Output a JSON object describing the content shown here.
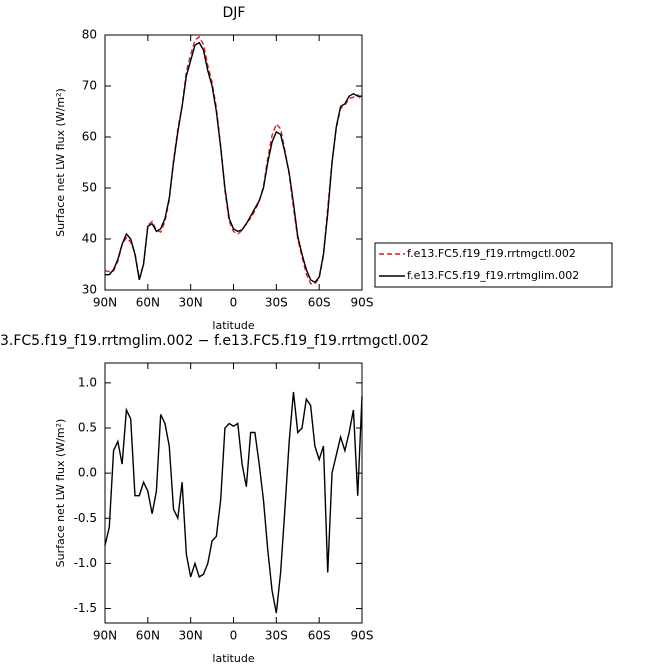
{
  "chart_data": [
    {
      "type": "line",
      "title": "DJF",
      "xlabel": "latitude",
      "ylabel": "Surface net LW flux (W/m²)",
      "x": [
        90,
        87,
        84,
        81,
        78,
        75,
        72,
        69,
        66,
        63,
        60,
        57,
        54,
        51,
        48,
        45,
        42,
        39,
        36,
        33,
        30,
        27,
        24,
        21,
        18,
        15,
        12,
        9,
        6,
        3,
        0,
        -3,
        -6,
        -9,
        -12,
        -15,
        -18,
        -21,
        -24,
        -27,
        -30,
        -33,
        -36,
        -39,
        -42,
        -45,
        -48,
        -51,
        -54,
        -57,
        -60,
        -63,
        -66,
        -69,
        -72,
        -75,
        -78,
        -81,
        -84,
        -87,
        -90
      ],
      "series": [
        {
          "name": "f.e13.FC5.f19_f19.rrtmgctl.002",
          "color": "#e41a1c",
          "dash": "dashed",
          "values": [
            33.8,
            33.6,
            33.75,
            35.65,
            38.9,
            40.3,
            39.4,
            37.25,
            32.25,
            35.1,
            42.7,
            43.45,
            41.7,
            41.35,
            43.45,
            47.7,
            55.4,
            61.5,
            66.1,
            72.9,
            76.15,
            79,
            79.65,
            78.12,
            74,
            70.75,
            65.7,
            58.3,
            49.5,
            43.45,
            41.48,
            40.95,
            41.7,
            43.15,
            44.05,
            45.55,
            47.4,
            50.3,
            55.85,
            60.3,
            62.55,
            61.6,
            57.4,
            52.65,
            46.1,
            40.05,
            36.5,
            33.18,
            31.25,
            31.2,
            32.35,
            36.7,
            46.1,
            55,
            61.8,
            65.6,
            66.25,
            67.55,
            67.8,
            68.25,
            67.15
          ]
        },
        {
          "name": "f.e13.FC5.f19_f19.rrtmglim.002",
          "color": "#000000",
          "dash": "solid",
          "values": [
            33,
            33,
            34,
            36,
            39,
            41,
            40,
            37,
            32,
            35,
            42.5,
            43,
            41.5,
            42,
            44,
            48,
            55,
            61,
            66,
            72,
            75,
            78,
            78.5,
            77,
            73,
            70,
            65,
            58,
            50,
            44,
            42,
            41.5,
            41.8,
            43,
            44.5,
            46,
            47.5,
            50,
            55,
            59,
            61,
            60.5,
            57,
            53,
            47,
            40.5,
            37,
            34,
            32,
            31.5,
            32.5,
            37,
            45,
            55,
            62,
            66,
            66.5,
            68,
            68.5,
            68,
            68
          ]
        }
      ],
      "xlim": [
        90,
        -90
      ],
      "xticks": [
        {
          "value": 90,
          "label": "90N"
        },
        {
          "value": 60,
          "label": "60N"
        },
        {
          "value": 30,
          "label": "30N"
        },
        0,
        {
          "value": -30,
          "label": "30S"
        },
        {
          "value": -60,
          "label": "60S"
        },
        {
          "value": -90,
          "label": "90S"
        }
      ],
      "ylim": [
        30,
        80
      ],
      "yticks": [
        30,
        40,
        50,
        60,
        70,
        80
      ],
      "legend": "outside right"
    },
    {
      "type": "line",
      "title": "3.FC5.f19_f19.rrtmglim.002 − f.e13.FC5.f19_f19.rrtmgctl.002",
      "xlabel": "latitude",
      "ylabel": "Surface net LW flux (W/m²)",
      "x": [
        90,
        87,
        84,
        81,
        78,
        75,
        72,
        69,
        66,
        63,
        60,
        57,
        54,
        51,
        48,
        45,
        42,
        39,
        36,
        33,
        30,
        27,
        24,
        21,
        18,
        15,
        12,
        9,
        6,
        3,
        0,
        -3,
        -6,
        -9,
        -12,
        -15,
        -18,
        -21,
        -24,
        -27,
        -30,
        -33,
        -36,
        -39,
        -42,
        -45,
        -48,
        -51,
        -54,
        -57,
        -60,
        -63,
        -66,
        -69,
        -72,
        -75,
        -78,
        -81,
        -84,
        -87,
        -90
      ],
      "color": "#000000",
      "values": [
        -0.8,
        -0.6,
        0.25,
        0.35,
        0.1,
        0.7,
        0.6,
        -0.25,
        -0.25,
        -0.1,
        -0.2,
        -0.45,
        -0.2,
        0.65,
        0.55,
        0.3,
        -0.4,
        -0.5,
        -0.1,
        -0.9,
        -1.15,
        -1.0,
        -1.15,
        -1.12,
        -1.0,
        -0.75,
        -0.7,
        -0.3,
        0.5,
        0.55,
        0.52,
        0.55,
        0.1,
        -0.15,
        0.45,
        0.45,
        0.1,
        -0.3,
        -0.85,
        -1.3,
        -1.55,
        -1.1,
        -0.4,
        0.35,
        0.9,
        0.45,
        0.5,
        0.82,
        0.75,
        0.3,
        0.15,
        0.3,
        -1.1,
        0.0,
        0.2,
        0.4,
        0.25,
        0.45,
        0.7,
        -0.25,
        0.85
      ],
      "xlim": [
        90,
        -90
      ],
      "xticks": [
        {
          "value": 90,
          "label": "90N"
        },
        {
          "value": 60,
          "label": "60N"
        },
        {
          "value": 30,
          "label": "30N"
        },
        0,
        {
          "value": -30,
          "label": "30S"
        },
        {
          "value": -60,
          "label": "60S"
        },
        {
          "value": -90,
          "label": "90S"
        }
      ],
      "ylim": [
        -1.66,
        1.22
      ],
      "yticks": [
        -1.5,
        {
          "value": -1,
          "label": "-1.0"
        },
        -0.5,
        {
          "value": 0,
          "label": "0.0"
        },
        0.5,
        {
          "value": 1,
          "label": "1.0"
        }
      ]
    }
  ]
}
